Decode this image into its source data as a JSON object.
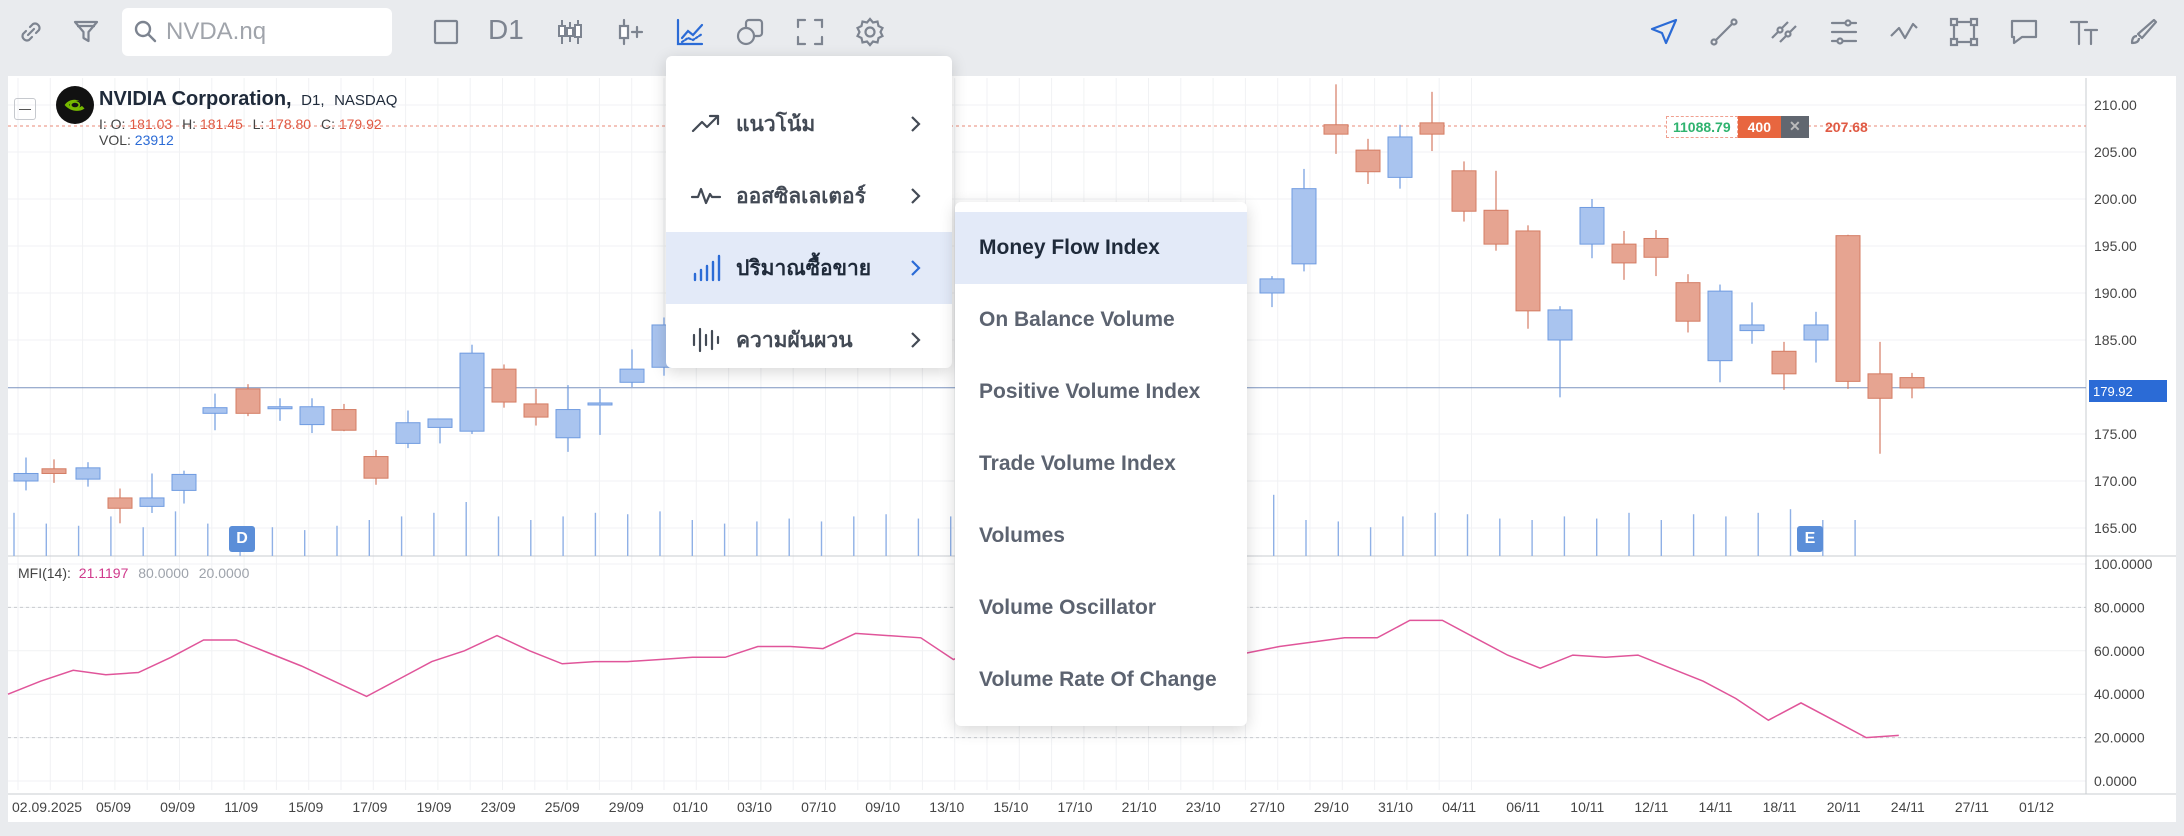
{
  "toolbar": {
    "search_placeholder": "NVDA.nq",
    "timeframe": "D1"
  },
  "symbol": {
    "name": "NVIDIA Corporation,",
    "interval": "D1,",
    "exchange": "NASDAQ",
    "o_label": "I: O:",
    "o": "181.03",
    "h_label": "H:",
    "h": "181.45",
    "l_label": "L:",
    "l": "178.80",
    "c_label": "C:",
    "c": "179.92",
    "vol_label": "VOL:",
    "vol": "23912"
  },
  "order": {
    "price_a": "11088.79",
    "qty": "400",
    "close": "✕",
    "price_b": "207.68"
  },
  "current_price": "179.92",
  "events": [
    "D",
    "E"
  ],
  "indicator": {
    "name": "MFI(14):",
    "value": "21.1197",
    "upper": "80.0000",
    "lower": "20.0000"
  },
  "price_axis": [
    "210.00",
    "205.00",
    "200.00",
    "195.00",
    "190.00",
    "185.00",
    "175.00",
    "170.00",
    "165.00"
  ],
  "mfi_axis": [
    "100.0000",
    "80.0000",
    "60.0000",
    "40.0000",
    "20.0000",
    "0.0000"
  ],
  "date_axis": [
    "02.09.2025",
    "05/09",
    "09/09",
    "11/09",
    "15/09",
    "17/09",
    "19/09",
    "23/09",
    "25/09",
    "29/09",
    "01/10",
    "03/10",
    "07/10",
    "09/10",
    "13/10",
    "15/10",
    "17/10",
    "21/10",
    "23/10",
    "27/10",
    "29/10",
    "31/10",
    "04/11",
    "06/11",
    "10/11",
    "12/11",
    "14/11",
    "18/11",
    "20/11",
    "24/11",
    "27/11",
    "01/12"
  ],
  "menu_categories": [
    {
      "label": "แนวโน้ม",
      "icon": "trend-icon"
    },
    {
      "label": "ออสซิลเลเตอร์",
      "icon": "oscillator-icon"
    },
    {
      "label": "ปริมาณซื้อขาย",
      "icon": "volume-icon",
      "active": true
    },
    {
      "label": "ความผันผวน",
      "icon": "volatility-icon"
    }
  ],
  "submenu_items": [
    "Money Flow Index",
    "On Balance Volume",
    "Positive Volume Index",
    "Trade Volume Index",
    "Volumes",
    "Volume Oscillator",
    "Volume Rate Of Change"
  ],
  "chart_data": {
    "type": "candlestick",
    "symbol": "NVDA",
    "interval": "D1",
    "up_color": "#a9c4ef",
    "down_color": "#e6a491",
    "candles": [
      {
        "d": "02/09",
        "o": 170.0,
        "h": 172.5,
        "l": 169.0,
        "c": 170.8
      },
      {
        "d": "03/09",
        "o": 171.3,
        "h": 172.3,
        "l": 169.8,
        "c": 170.8
      },
      {
        "d": "04/09",
        "o": 170.2,
        "h": 172.0,
        "l": 169.4,
        "c": 171.4
      },
      {
        "d": "05/09",
        "o": 168.2,
        "h": 169.2,
        "l": 165.5,
        "c": 167.1
      },
      {
        "d": "08/09",
        "o": 167.3,
        "h": 170.8,
        "l": 166.6,
        "c": 168.2
      },
      {
        "d": "09/09",
        "o": 169.0,
        "h": 171.1,
        "l": 167.6,
        "c": 170.7
      },
      {
        "d": "10/09",
        "o": 177.2,
        "h": 179.3,
        "l": 175.4,
        "c": 177.8
      },
      {
        "d": "11/09",
        "o": 179.8,
        "h": 180.3,
        "l": 176.9,
        "c": 177.2
      },
      {
        "d": "12/09",
        "o": 177.8,
        "h": 178.8,
        "l": 176.4,
        "c": 177.9
      },
      {
        "d": "15/09",
        "o": 176.0,
        "h": 178.8,
        "l": 175.1,
        "c": 177.9
      },
      {
        "d": "16/09",
        "o": 177.6,
        "h": 178.2,
        "l": 175.3,
        "c": 175.4
      },
      {
        "d": "17/09",
        "o": 172.6,
        "h": 173.3,
        "l": 169.6,
        "c": 170.3
      },
      {
        "d": "18/09",
        "o": 174.0,
        "h": 177.5,
        "l": 173.5,
        "c": 176.2
      },
      {
        "d": "19/09",
        "o": 175.7,
        "h": 176.5,
        "l": 174.0,
        "c": 176.6
      },
      {
        "d": "22/09",
        "o": 175.3,
        "h": 184.5,
        "l": 175.0,
        "c": 183.6
      },
      {
        "d": "23/09",
        "o": 181.9,
        "h": 182.4,
        "l": 177.8,
        "c": 178.4
      },
      {
        "d": "24/09",
        "o": 178.2,
        "h": 179.8,
        "l": 175.9,
        "c": 176.8
      },
      {
        "d": "25/09",
        "o": 174.6,
        "h": 180.2,
        "l": 173.1,
        "c": 177.6
      },
      {
        "d": "26/09",
        "o": 178.2,
        "h": 179.8,
        "l": 174.9,
        "c": 178.3
      },
      {
        "d": "29/09",
        "o": 180.5,
        "h": 184.0,
        "l": 180.0,
        "c": 181.9
      },
      {
        "d": "30/09",
        "o": 182.1,
        "h": 187.4,
        "l": 181.2,
        "c": 186.6
      },
      {
        "d": "28/10",
        "o": 190.0,
        "h": 191.8,
        "l": 188.5,
        "c": 191.5
      },
      {
        "d": "29/10",
        "o": 193.1,
        "h": 203.2,
        "l": 192.3,
        "c": 201.1
      },
      {
        "d": "30/10",
        "o": 207.9,
        "h": 212.2,
        "l": 204.8,
        "c": 206.9
      },
      {
        "d": "31/10",
        "o": 205.2,
        "h": 206.4,
        "l": 201.6,
        "c": 202.9
      },
      {
        "d": "03/11",
        "o": 202.3,
        "h": 207.9,
        "l": 201.1,
        "c": 206.6
      },
      {
        "d": "04/11",
        "o": 208.1,
        "h": 211.4,
        "l": 205.1,
        "c": 206.9
      },
      {
        "d": "05/11",
        "o": 203.0,
        "h": 204.0,
        "l": 197.6,
        "c": 198.7
      },
      {
        "d": "06/11",
        "o": 198.8,
        "h": 203.0,
        "l": 194.5,
        "c": 195.2
      },
      {
        "d": "07/11",
        "o": 196.6,
        "h": 197.2,
        "l": 186.2,
        "c": 188.1
      },
      {
        "d": "10/11",
        "o": 185.0,
        "h": 188.6,
        "l": 178.9,
        "c": 188.2
      },
      {
        "d": "11/11",
        "o": 195.2,
        "h": 200.0,
        "l": 193.7,
        "c": 199.1
      },
      {
        "d": "12/11",
        "o": 195.2,
        "h": 196.6,
        "l": 191.4,
        "c": 193.2
      },
      {
        "d": "13/11",
        "o": 195.8,
        "h": 196.7,
        "l": 191.8,
        "c": 193.8
      },
      {
        "d": "14/11",
        "o": 191.1,
        "h": 192.0,
        "l": 185.8,
        "c": 187.0
      },
      {
        "d": "17/11",
        "o": 182.8,
        "h": 190.9,
        "l": 180.5,
        "c": 190.2
      },
      {
        "d": "18/11",
        "o": 186.0,
        "h": 189.0,
        "l": 184.6,
        "c": 186.6
      },
      {
        "d": "19/11",
        "o": 183.8,
        "h": 184.8,
        "l": 179.7,
        "c": 181.4
      },
      {
        "d": "20/11",
        "o": 185.0,
        "h": 188.0,
        "l": 182.6,
        "c": 186.6
      },
      {
        "d": "21/11",
        "o": 196.1,
        "h": 196.2,
        "l": 179.8,
        "c": 180.6
      },
      {
        "d": "24/11",
        "o": 181.4,
        "h": 184.8,
        "l": 172.9,
        "c": 178.8
      },
      {
        "d": "25/11",
        "o": 181.0,
        "h": 181.5,
        "l": 178.8,
        "c": 179.9
      }
    ],
    "mfi": [
      40,
      46,
      51,
      49,
      50,
      57,
      65,
      65,
      59,
      53,
      46,
      39,
      47,
      55,
      60,
      67,
      60,
      54,
      55,
      55,
      56,
      57,
      57,
      62,
      62,
      61,
      68,
      67,
      66,
      56,
      62,
      59,
      58,
      59,
      58,
      57,
      59,
      58,
      59,
      62,
      64,
      66,
      66,
      74,
      74,
      66,
      58,
      52,
      58,
      57,
      58,
      52,
      46,
      38,
      28,
      36,
      28,
      20,
      21
    ],
    "mfi_levels": [
      80,
      20
    ],
    "price_range": [
      163,
      212
    ],
    "mfi_range": [
      0,
      100
    ]
  }
}
